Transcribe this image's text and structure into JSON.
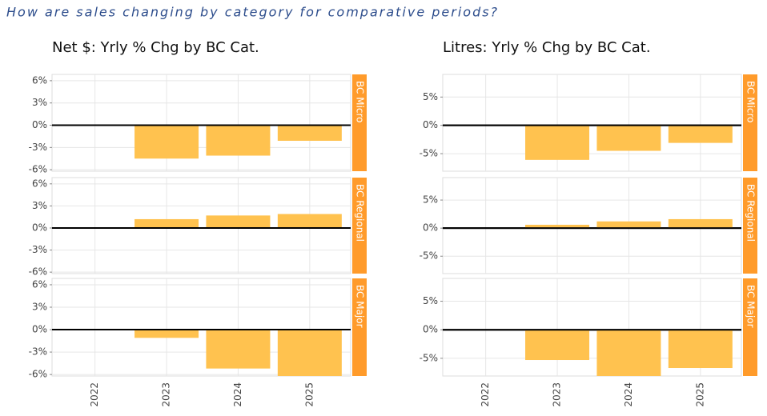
{
  "page_title": "How are sales changing by category for comparative periods?",
  "chart_data": [
    {
      "type": "bar",
      "title": "Net $: Yrly % Chg by BC Cat.",
      "categories": [
        "2022",
        "2023",
        "2024",
        "2025"
      ],
      "color": "#ffc24f",
      "strip_color": "#ff9b2b",
      "grid": true,
      "ylim": [
        -6.2,
        6.85
      ],
      "yticks": [
        {
          "value": 6,
          "label": "6%"
        },
        {
          "value": 3,
          "label": "3%"
        },
        {
          "value": 0,
          "label": "0%"
        },
        {
          "value": -3,
          "label": "-3%"
        },
        {
          "value": -6,
          "label": "-6%"
        }
      ],
      "facets": [
        {
          "label": "BC Micro",
          "values": [
            null,
            -4.5,
            -4.1,
            -2.1
          ]
        },
        {
          "label": "BC Regional",
          "values": [
            null,
            1.2,
            1.7,
            1.9
          ]
        },
        {
          "label": "BC Major",
          "values": [
            null,
            -1.1,
            -5.2,
            -6.5
          ]
        }
      ]
    },
    {
      "type": "bar",
      "title": "Litres: Yrly % Chg by BC Cat.",
      "categories": [
        "2022",
        "2023",
        "2024",
        "2025"
      ],
      "color": "#ffc24f",
      "strip_color": "#ff9b2b",
      "grid": true,
      "ylim": [
        -8.1,
        9
      ],
      "yticks": [
        {
          "value": 5,
          "label": "5%"
        },
        {
          "value": 0,
          "label": "0%"
        },
        {
          "value": -5,
          "label": "-5%"
        }
      ],
      "facets": [
        {
          "label": "BC Micro",
          "values": [
            null,
            -6.1,
            -4.5,
            -3.1
          ]
        },
        {
          "label": "BC Regional",
          "values": [
            null,
            0.6,
            1.2,
            1.6
          ]
        },
        {
          "label": "BC Major",
          "values": [
            null,
            -5.3,
            -8.5,
            -6.7
          ]
        }
      ]
    }
  ]
}
